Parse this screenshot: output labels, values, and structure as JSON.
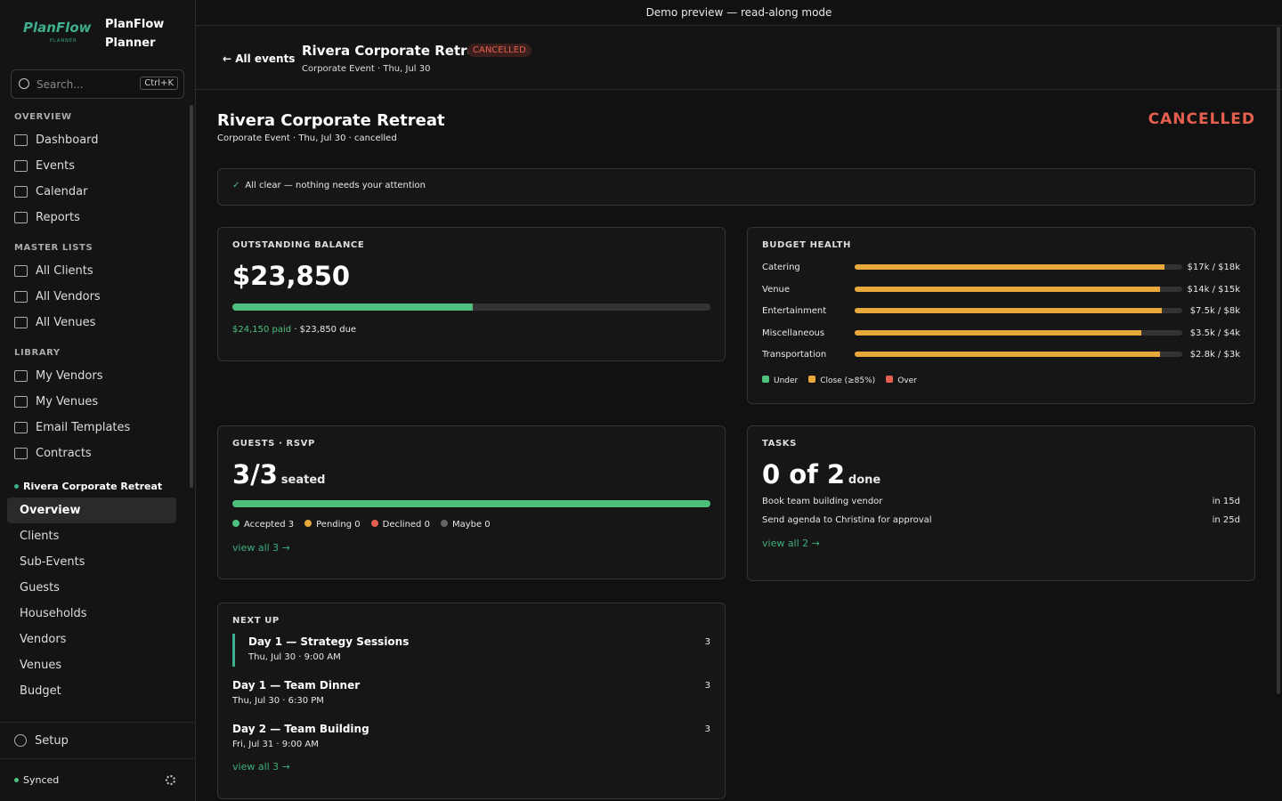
{
  "banner": "Demo preview — read-along mode",
  "sidebar": {
    "logo": "PlanFlow",
    "logo_sub": "PLANNER",
    "brand": "PlanFlow Planner",
    "search": {
      "placeholder": "Search...",
      "shortcut": "Ctrl+K"
    },
    "sections": [
      {
        "title": "OVERVIEW",
        "items": [
          "Dashboard",
          "Events",
          "Calendar",
          "Reports"
        ]
      },
      {
        "title": "MASTER LISTS",
        "items": [
          "All Clients",
          "All Vendors",
          "All Venues"
        ]
      },
      {
        "title": "LIBRARY",
        "items": [
          "My Vendors",
          "My Venues",
          "Email Templates",
          "Contracts"
        ]
      }
    ],
    "event": {
      "name": "Rivera Corporate Retreat",
      "items": [
        "Overview",
        "Clients",
        "Sub-Events",
        "Guests",
        "Households",
        "Vendors",
        "Venues",
        "Budget"
      ]
    },
    "setup": "Setup",
    "status": "Synced"
  },
  "header": {
    "back": "All events",
    "title": "Rivera Corporate Retreat",
    "badge": "CANCELLED",
    "subtitle": "Corporate Event · Thu, Jul 30"
  },
  "page": {
    "title": "Rivera Corporate Retreat",
    "subtitle": "Corporate Event · Thu, Jul 30 · cancelled",
    "status": "CANCELLED",
    "alert": "All clear — nothing needs your attention"
  },
  "balance": {
    "heading": "OUTSTANDING BALANCE",
    "amount": "$23,850",
    "paid": 24150,
    "due": 23850,
    "paid_label": "$24,150 paid",
    "due_label": "· $23,850 due"
  },
  "budget": {
    "heading": "BUDGET HEALTH",
    "rows": [
      {
        "name": "Catering",
        "spent": 17,
        "budget": 18,
        "label": "$17k / $18k"
      },
      {
        "name": "Venue",
        "spent": 14,
        "budget": 15,
        "label": "$14k / $15k"
      },
      {
        "name": "Entertainment",
        "spent": 7.5,
        "budget": 8,
        "label": "$7.5k / $8k"
      },
      {
        "name": "Miscellaneous",
        "spent": 3.5,
        "budget": 4,
        "label": "$3.5k / $4k"
      },
      {
        "name": "Transportation",
        "spent": 2.8,
        "budget": 3,
        "label": "$2.8k / $3k"
      }
    ],
    "bar_color": "#e8a93a",
    "legend": [
      {
        "label": "Under",
        "color": "#4ec07e"
      },
      {
        "label": "Close (≥85%)",
        "color": "#e8a93a"
      },
      {
        "label": "Over",
        "color": "#e5604f"
      }
    ]
  },
  "guests": {
    "heading": "GUESTS · RSVP",
    "count": "3/3",
    "suffix": "seated",
    "total": 3,
    "rsvp": [
      {
        "label": "Accepted 3",
        "count": 3,
        "color": "#4ec07e"
      },
      {
        "label": "Pending 0",
        "count": 0,
        "color": "#e8a93a"
      },
      {
        "label": "Declined 0",
        "count": 0,
        "color": "#e5604f"
      },
      {
        "label": "Maybe 0",
        "count": 0,
        "color": "#666666"
      }
    ],
    "link": "view all 3 →"
  },
  "tasks": {
    "heading": "TASKS",
    "count": "0 of 2",
    "suffix": "done",
    "items": [
      {
        "name": "Book team building vendor",
        "due": "in 15d"
      },
      {
        "name": "Send agenda to Christina for approval",
        "due": "in 25d"
      }
    ],
    "link": "view all 2 →"
  },
  "next_up": {
    "heading": "NEXT UP",
    "items": [
      {
        "title": "Day 1 — Strategy Sessions",
        "time": "Thu, Jul 30 · 9:00 AM",
        "count": "3"
      },
      {
        "title": "Day 1 — Team Dinner",
        "time": "Thu, Jul 30 · 6:30 PM",
        "count": "3"
      },
      {
        "title": "Day 2 — Team Building",
        "time": "Fri, Jul 31 · 9:00 AM",
        "count": "3"
      }
    ],
    "link": "view all 3 →"
  }
}
